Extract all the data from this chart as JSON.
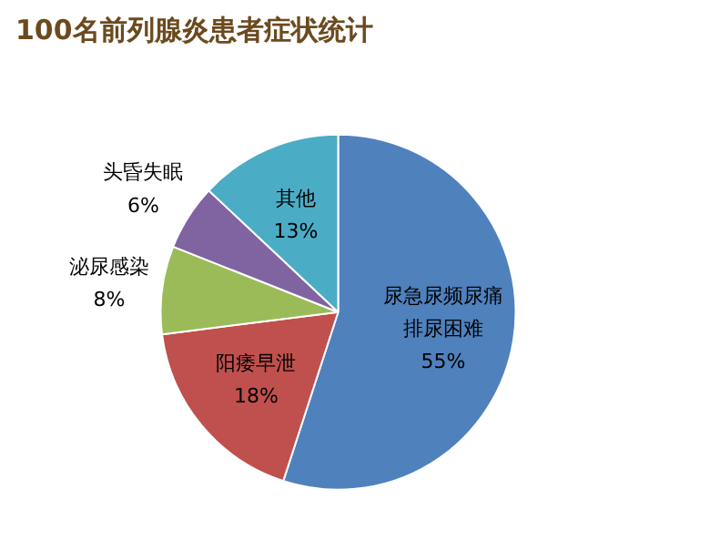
{
  "chart_data": {
    "type": "pie",
    "title": "100名前列腺炎患者症状统计",
    "categories": [
      "尿急尿频尿痛排尿困难",
      "阳痿早泄",
      "泌尿感染",
      "头昏失眠",
      "其他"
    ],
    "values": [
      55,
      18,
      8,
      6,
      13
    ],
    "value_labels": [
      "55%",
      "18%",
      "8%",
      "6%",
      "13%"
    ],
    "colors": [
      "#4f81bd",
      "#c0504d",
      "#9bbb59",
      "#8064a2",
      "#4bacc6"
    ]
  }
}
